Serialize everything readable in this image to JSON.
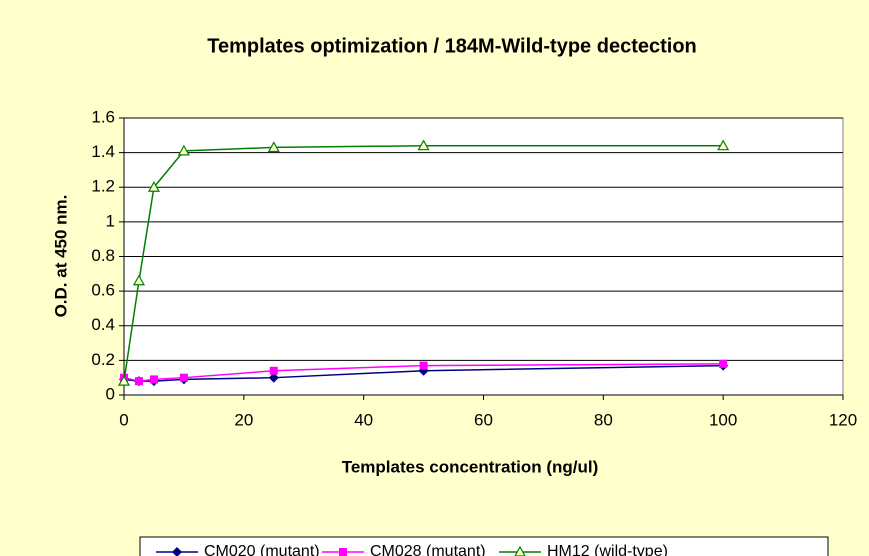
{
  "chart_data": {
    "type": "line",
    "title": "Templates optimization / 184M-Wild-type dectection",
    "x_label": "Templates concentration (ng/ul)",
    "y_label": "O.D. at 450 nm.",
    "x": [
      0,
      2.5,
      5,
      10,
      25,
      50,
      100
    ],
    "series": [
      {
        "name": "CM020 (mutant)",
        "color": "#000080",
        "marker": "diamond",
        "values": [
          0.09,
          0.08,
          0.08,
          0.09,
          0.1,
          0.14,
          0.17
        ]
      },
      {
        "name": "CM028 (mutant)",
        "color": "#FF00FF",
        "marker": "square",
        "values": [
          0.1,
          0.08,
          0.09,
          0.1,
          0.14,
          0.17,
          0.18
        ]
      },
      {
        "name": "HM12 (wild-type)",
        "color": "#008000",
        "marker": "triangle",
        "values": [
          0.08,
          0.66,
          1.2,
          1.41,
          1.43,
          1.44,
          1.44
        ]
      }
    ],
    "xlim": [
      0,
      120
    ],
    "xticks": [
      0,
      20,
      40,
      60,
      80,
      100,
      120
    ],
    "ylim": [
      0,
      1.6
    ],
    "yticks": [
      0,
      0.2,
      0.4,
      0.6,
      0.8,
      1,
      1.2,
      1.4,
      1.6
    ],
    "grid": true,
    "legend": "bottom"
  }
}
